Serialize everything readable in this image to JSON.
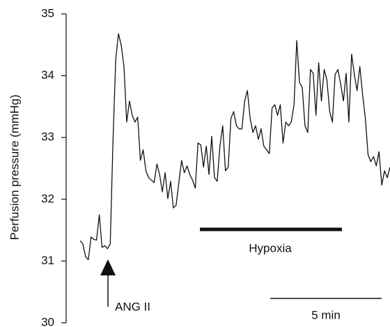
{
  "chart_data": {
    "type": "line",
    "y_label": "Perfusion pressure (mmHg)",
    "ylim": [
      30,
      35
    ],
    "yticks": [
      30,
      31,
      32,
      33,
      34,
      35
    ],
    "color": "#111111",
    "annotations": [
      "ANG II",
      "Hypoxia",
      "5 min"
    ],
    "values": [
      31.33,
      31.28,
      31.07,
      31.02,
      31.39,
      31.35,
      31.34,
      31.75,
      31.22,
      31.25,
      31.2,
      31.28,
      32.97,
      34.27,
      34.68,
      34.49,
      34.15,
      33.25,
      33.59,
      33.36,
      33.25,
      33.33,
      32.63,
      32.8,
      32.46,
      32.35,
      32.31,
      32.27,
      32.57,
      32.4,
      32.12,
      32.43,
      32.01,
      32.29,
      31.86,
      31.9,
      32.27,
      32.63,
      32.43,
      32.54,
      32.4,
      32.31,
      32.18,
      32.91,
      32.88,
      32.52,
      32.86,
      32.4,
      33.02,
      32.35,
      32.29,
      32.86,
      33.19,
      32.46,
      32.52,
      33.31,
      33.42,
      33.19,
      33.14,
      33.14,
      33.59,
      33.76,
      33.31,
      33.08,
      33.19,
      32.97,
      33.14,
      32.86,
      32.8,
      32.74,
      33.48,
      33.53,
      33.36,
      33.53,
      32.91,
      33.25,
      33.19,
      33.25,
      33.53,
      34.57,
      33.89,
      33.81,
      33.19,
      33.08,
      34.1,
      34.04,
      33.36,
      34.21,
      33.59,
      34.1,
      33.93,
      33.42,
      33.25,
      34.02,
      34.1,
      33.87,
      33.59,
      34.04,
      33.25,
      34.35,
      34.02,
      33.76,
      34.15,
      33.7,
      33.31,
      32.72,
      32.61,
      32.69,
      32.54,
      32.77,
      32.23,
      32.46,
      32.35,
      32.52
    ]
  }
}
